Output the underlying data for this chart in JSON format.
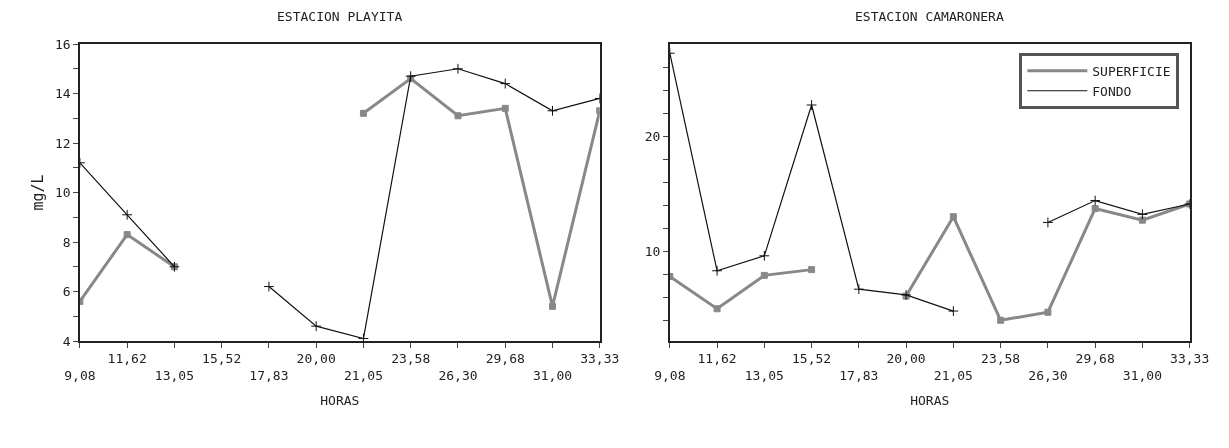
{
  "chart_data": [
    {
      "type": "line",
      "title": "ESTACION PLAYITA",
      "xlabel": "HORAS",
      "ylabel": "mg/L",
      "categories": [
        "9,08",
        "11,62",
        "13,05",
        "15,52",
        "17,83",
        "20,00",
        "21,05",
        "23,58",
        "26,30",
        "29,68",
        "31,00",
        "33,33"
      ],
      "series": [
        {
          "color": "#888888",
          "marker": "square",
          "values": [
            5.6,
            8.3,
            7.0,
            null,
            null,
            null,
            13.2,
            14.6,
            13.1,
            13.4,
            5.4,
            13.3
          ]
        },
        {
          "color": "#111111",
          "marker": "cross",
          "values": [
            11.2,
            9.1,
            7.0,
            null,
            6.2,
            4.6,
            4.1,
            14.7,
            15.0,
            14.4,
            13.3,
            13.8
          ]
        }
      ],
      "ylim": [
        4,
        16
      ],
      "yticks": [
        4,
        {
          "value": 5,
          "label": null
        },
        6,
        {
          "value": 7,
          "label": null
        },
        8,
        {
          "value": 9,
          "label": null
        },
        10,
        {
          "value": 11,
          "label": null
        },
        12,
        {
          "value": 13,
          "label": null
        },
        14,
        {
          "value": 15,
          "label": null
        },
        16
      ],
      "grid": false,
      "legend": false
    },
    {
      "type": "line",
      "title": "ESTACION CAMARONERA",
      "xlabel": "HORAS",
      "categories": [
        "9,08",
        "11,62",
        "13,05",
        "15,52",
        "17,83",
        "20,00",
        "21,05",
        "23,58",
        "26,30",
        "29,68",
        "31,00",
        "33,33"
      ],
      "series": [
        {
          "name": "SUPERFICIE",
          "color": "#888888",
          "marker": "square",
          "values": [
            7.8,
            5.0,
            7.9,
            8.4,
            null,
            6.1,
            13.0,
            4.0,
            4.7,
            13.7,
            12.7,
            14.1
          ]
        },
        {
          "name": "FONDO",
          "color": "#111111",
          "marker": "cross",
          "values": [
            27.2,
            8.3,
            9.6,
            22.7,
            6.7,
            6.2,
            4.8,
            null,
            12.5,
            14.4,
            13.2,
            14.1
          ]
        }
      ],
      "ylim": [
        2.2,
        28
      ],
      "yticks": [
        {
          "value": 4,
          "label": null
        },
        {
          "value": 6,
          "label": null
        },
        {
          "value": 8,
          "label": null
        },
        10,
        {
          "value": 12,
          "label": null
        },
        {
          "value": 14,
          "label": null
        },
        {
          "value": 16,
          "label": null
        },
        {
          "value": 18,
          "label": null
        },
        20,
        {
          "value": 22,
          "label": null
        },
        {
          "value": 24,
          "label": null
        },
        {
          "value": 26,
          "label": null
        }
      ],
      "grid": false,
      "legend": "top right"
    }
  ]
}
